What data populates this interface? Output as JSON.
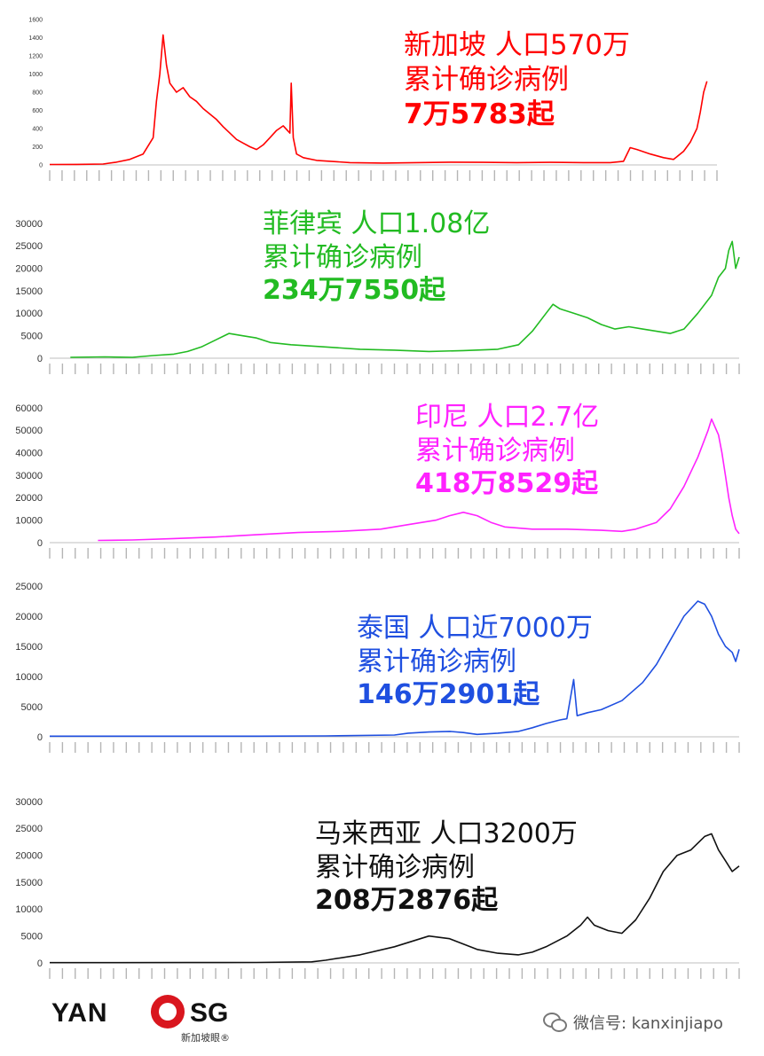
{
  "chart_data": [
    {
      "type": "line",
      "color": "#ff0000",
      "annotation": [
        "新加坡  人口570万",
        "累计确诊病例",
        "7万5783起"
      ],
      "yticks": [
        "0",
        "200",
        "400",
        "600",
        "800",
        "1000",
        "1200",
        "1400",
        "1600"
      ],
      "ylim": [
        0,
        1600
      ],
      "points": [
        [
          0,
          5
        ],
        [
          0.04,
          6
        ],
        [
          0.08,
          10
        ],
        [
          0.1,
          30
        ],
        [
          0.12,
          60
        ],
        [
          0.14,
          120
        ],
        [
          0.155,
          300
        ],
        [
          0.16,
          700
        ],
        [
          0.165,
          1000
        ],
        [
          0.17,
          1430
        ],
        [
          0.175,
          1100
        ],
        [
          0.18,
          900
        ],
        [
          0.19,
          800
        ],
        [
          0.2,
          850
        ],
        [
          0.21,
          750
        ],
        [
          0.22,
          700
        ],
        [
          0.23,
          620
        ],
        [
          0.24,
          560
        ],
        [
          0.25,
          500
        ],
        [
          0.26,
          420
        ],
        [
          0.27,
          350
        ],
        [
          0.28,
          280
        ],
        [
          0.29,
          240
        ],
        [
          0.3,
          200
        ],
        [
          0.31,
          170
        ],
        [
          0.32,
          220
        ],
        [
          0.33,
          300
        ],
        [
          0.34,
          380
        ],
        [
          0.35,
          430
        ],
        [
          0.36,
          350
        ],
        [
          0.362,
          900
        ],
        [
          0.365,
          300
        ],
        [
          0.37,
          120
        ],
        [
          0.38,
          80
        ],
        [
          0.4,
          50
        ],
        [
          0.45,
          25
        ],
        [
          0.5,
          20
        ],
        [
          0.55,
          25
        ],
        [
          0.6,
          30
        ],
        [
          0.65,
          28
        ],
        [
          0.7,
          25
        ],
        [
          0.75,
          28
        ],
        [
          0.8,
          25
        ],
        [
          0.84,
          25
        ],
        [
          0.86,
          40
        ],
        [
          0.87,
          190
        ],
        [
          0.88,
          170
        ],
        [
          0.9,
          120
        ],
        [
          0.92,
          80
        ],
        [
          0.935,
          60
        ],
        [
          0.95,
          150
        ],
        [
          0.96,
          250
        ],
        [
          0.97,
          400
        ],
        [
          0.975,
          580
        ],
        [
          0.98,
          800
        ],
        [
          0.985,
          920
        ]
      ]
    },
    {
      "type": "line",
      "color": "#22bb22",
      "annotation": [
        "菲律宾 人口1.08亿",
        "累计确诊病例",
        "234万7550起"
      ],
      "yticks": [
        "0",
        "5000",
        "10000",
        "15000",
        "20000",
        "25000",
        "30000"
      ],
      "ylim": [
        0,
        30000
      ],
      "points": [
        [
          0.03,
          200
        ],
        [
          0.08,
          300
        ],
        [
          0.12,
          200
        ],
        [
          0.15,
          600
        ],
        [
          0.18,
          900
        ],
        [
          0.2,
          1500
        ],
        [
          0.22,
          2500
        ],
        [
          0.24,
          4000
        ],
        [
          0.26,
          5500
        ],
        [
          0.28,
          5000
        ],
        [
          0.3,
          4500
        ],
        [
          0.32,
          3500
        ],
        [
          0.35,
          3000
        ],
        [
          0.4,
          2500
        ],
        [
          0.45,
          2000
        ],
        [
          0.5,
          1800
        ],
        [
          0.55,
          1500
        ],
        [
          0.6,
          1700
        ],
        [
          0.65,
          2000
        ],
        [
          0.68,
          3000
        ],
        [
          0.7,
          6000
        ],
        [
          0.72,
          10000
        ],
        [
          0.73,
          12000
        ],
        [
          0.74,
          11000
        ],
        [
          0.76,
          10000
        ],
        [
          0.78,
          9000
        ],
        [
          0.8,
          7500
        ],
        [
          0.82,
          6500
        ],
        [
          0.84,
          7000
        ],
        [
          0.86,
          6500
        ],
        [
          0.88,
          6000
        ],
        [
          0.9,
          5500
        ],
        [
          0.92,
          6500
        ],
        [
          0.94,
          10000
        ],
        [
          0.96,
          14000
        ],
        [
          0.97,
          18000
        ],
        [
          0.98,
          20000
        ],
        [
          0.985,
          24000
        ],
        [
          0.99,
          26000
        ],
        [
          0.995,
          20000
        ],
        [
          1.0,
          22500
        ]
      ]
    },
    {
      "type": "line",
      "color": "#ff22ff",
      "annotation": [
        "印尼  人口2.7亿",
        "累计确诊病例",
        "418万8529起"
      ],
      "yticks": [
        "0",
        "10000",
        "20000",
        "30000",
        "40000",
        "50000",
        "60000"
      ],
      "ylim": [
        0,
        60000
      ],
      "points": [
        [
          0.07,
          1000
        ],
        [
          0.12,
          1200
        ],
        [
          0.18,
          1800
        ],
        [
          0.24,
          2500
        ],
        [
          0.3,
          3500
        ],
        [
          0.36,
          4500
        ],
        [
          0.42,
          5000
        ],
        [
          0.48,
          6000
        ],
        [
          0.52,
          8000
        ],
        [
          0.56,
          10000
        ],
        [
          0.58,
          12000
        ],
        [
          0.6,
          13500
        ],
        [
          0.62,
          12000
        ],
        [
          0.64,
          9000
        ],
        [
          0.66,
          7000
        ],
        [
          0.7,
          6000
        ],
        [
          0.75,
          6000
        ],
        [
          0.8,
          5500
        ],
        [
          0.83,
          5000
        ],
        [
          0.85,
          6000
        ],
        [
          0.88,
          9000
        ],
        [
          0.9,
          15000
        ],
        [
          0.92,
          25000
        ],
        [
          0.94,
          38000
        ],
        [
          0.955,
          50000
        ],
        [
          0.96,
          55000
        ],
        [
          0.97,
          48000
        ],
        [
          0.975,
          40000
        ],
        [
          0.98,
          30000
        ],
        [
          0.985,
          20000
        ],
        [
          0.99,
          12000
        ],
        [
          0.995,
          6000
        ],
        [
          1.0,
          4000
        ]
      ]
    },
    {
      "type": "line",
      "color": "#1f4fe0",
      "annotation": [
        "泰国  人口近7000万",
        "累计确诊病例",
        "146万2901起"
      ],
      "yticks": [
        "0",
        "5000",
        "10000",
        "15000",
        "20000",
        "25000"
      ],
      "ylim": [
        0,
        25000
      ],
      "points": [
        [
          0,
          100
        ],
        [
          0.1,
          100
        ],
        [
          0.2,
          100
        ],
        [
          0.3,
          100
        ],
        [
          0.4,
          150
        ],
        [
          0.5,
          300
        ],
        [
          0.52,
          600
        ],
        [
          0.55,
          800
        ],
        [
          0.58,
          900
        ],
        [
          0.6,
          700
        ],
        [
          0.62,
          400
        ],
        [
          0.65,
          600
        ],
        [
          0.68,
          900
        ],
        [
          0.7,
          1500
        ],
        [
          0.72,
          2200
        ],
        [
          0.74,
          2800
        ],
        [
          0.75,
          3000
        ],
        [
          0.76,
          9500
        ],
        [
          0.765,
          3500
        ],
        [
          0.78,
          4000
        ],
        [
          0.8,
          4500
        ],
        [
          0.83,
          6000
        ],
        [
          0.86,
          9000
        ],
        [
          0.88,
          12000
        ],
        [
          0.9,
          16000
        ],
        [
          0.92,
          20000
        ],
        [
          0.94,
          22500
        ],
        [
          0.95,
          22000
        ],
        [
          0.96,
          20000
        ],
        [
          0.97,
          17000
        ],
        [
          0.98,
          15000
        ],
        [
          0.99,
          14000
        ],
        [
          0.995,
          12500
        ],
        [
          1.0,
          14500
        ]
      ]
    },
    {
      "type": "line",
      "color": "#111111",
      "annotation": [
        "马来西亚  人口3200万",
        "累计确诊病例",
        "208万2876起"
      ],
      "yticks": [
        "0",
        "5000",
        "10000",
        "15000",
        "20000",
        "25000",
        "30000"
      ],
      "ylim": [
        0,
        30000
      ],
      "points": [
        [
          0,
          50
        ],
        [
          0.1,
          50
        ],
        [
          0.2,
          60
        ],
        [
          0.3,
          80
        ],
        [
          0.38,
          200
        ],
        [
          0.4,
          500
        ],
        [
          0.45,
          1500
        ],
        [
          0.5,
          3000
        ],
        [
          0.55,
          5000
        ],
        [
          0.58,
          4500
        ],
        [
          0.6,
          3500
        ],
        [
          0.62,
          2500
        ],
        [
          0.65,
          1800
        ],
        [
          0.68,
          1500
        ],
        [
          0.7,
          2000
        ],
        [
          0.72,
          3000
        ],
        [
          0.75,
          5000
        ],
        [
          0.77,
          7000
        ],
        [
          0.78,
          8500
        ],
        [
          0.79,
          7000
        ],
        [
          0.81,
          6000
        ],
        [
          0.83,
          5500
        ],
        [
          0.85,
          8000
        ],
        [
          0.87,
          12000
        ],
        [
          0.89,
          17000
        ],
        [
          0.91,
          20000
        ],
        [
          0.93,
          21000
        ],
        [
          0.95,
          23500
        ],
        [
          0.96,
          24000
        ],
        [
          0.97,
          21000
        ],
        [
          0.98,
          19000
        ],
        [
          0.99,
          17000
        ],
        [
          1.0,
          18000
        ]
      ]
    }
  ],
  "branding": {
    "logo_left": "YAN",
    "logo_right": "SG",
    "logo_sub": "新加坡眼®",
    "wechat": "微信号: kanxinjiapo"
  }
}
